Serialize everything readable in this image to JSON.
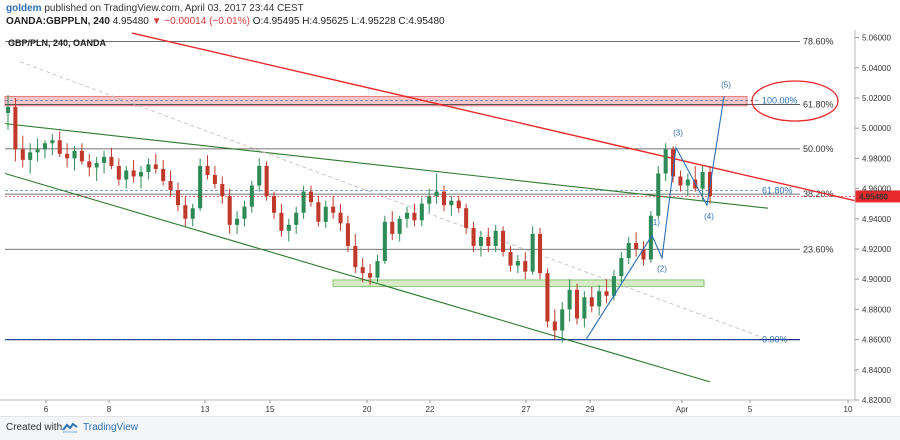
{
  "header": {
    "user": "goldem",
    "published": "published on TradingView.com, April 03, 2017 23:44 CEST",
    "symbol": "OANDA:GBPPLN, 240",
    "last": "4.95480",
    "change": "▼ −0.00014 (−0.01%)",
    "ohlc_o_label": "O:",
    "ohlc_o": "4.95495",
    "ohlc_h_label": "H:",
    "ohlc_h": "4.95625",
    "ohlc_l_label": "L:",
    "ohlc_l": "4.95228",
    "ohlc_c_label": "C:",
    "ohlc_c": "4.95480"
  },
  "chart_label": "GBP/PLN, 240, OANDA",
  "footer": {
    "created_with": "Created with",
    "brand": "TradingView"
  },
  "colors": {
    "up": "#2e8b57",
    "down": "#c0392b",
    "trend_red": "#e8292b",
    "channel": "#2f7a2f",
    "wave": "#2c6fb3",
    "fib_grid": "#444444",
    "price_tag": "#e8292b"
  },
  "chart_data": {
    "type": "candlestick",
    "title": "GBP/PLN, 240, OANDA",
    "ylim": [
      4.82,
      5.065
    ],
    "yticks": [
      "5.06000",
      "5.04000",
      "5.02000",
      "5.00000",
      "4.98000",
      "4.96000",
      "4.94000",
      "4.92000",
      "4.90000",
      "4.88000",
      "4.86000",
      "4.84000",
      "4.82000"
    ],
    "xticks": [
      "6",
      "8",
      "13",
      "15",
      "20",
      "22",
      "27",
      "29",
      "Apr",
      "5",
      "10"
    ],
    "last_price": "4.95480",
    "fib_levels": [
      {
        "label": "78.60%",
        "price": 5.0574
      },
      {
        "label": "61.80%",
        "price": 5.0157
      },
      {
        "label": "50.00%",
        "price": 4.9863
      },
      {
        "label": "38.20%",
        "price": 4.9563
      },
      {
        "label": "23.60%",
        "price": 4.9198
      },
      {
        "label": "0.00%",
        "price": 4.86
      }
    ],
    "fib_extension": [
      {
        "label": "100.00%",
        "price": 5.0182
      },
      {
        "label": "61.80%",
        "price": 4.9587
      },
      {
        "label": "0.00%",
        "price": 4.86
      }
    ],
    "resistance_zone": [
      5.0148,
      5.021
    ],
    "support_zone": [
      4.8951,
      4.8995
    ],
    "wave_labels": [
      "(1)",
      "(2)",
      "(3)",
      "(4)",
      "(5)"
    ],
    "candles": [
      [
        5.01,
        5.022,
        4.999,
        5.014
      ],
      [
        5.014,
        5.02,
        4.978,
        4.986
      ],
      [
        4.986,
        4.995,
        4.974,
        4.979
      ],
      [
        4.979,
        4.99,
        4.97,
        4.984
      ],
      [
        4.984,
        4.993,
        4.978,
        4.986
      ],
      [
        4.986,
        4.992,
        4.98,
        4.99
      ],
      [
        4.99,
        4.996,
        4.982,
        4.992
      ],
      [
        4.992,
        4.998,
        4.981,
        4.983
      ],
      [
        4.983,
        4.99,
        4.974,
        4.98
      ],
      [
        4.98,
        4.988,
        4.972,
        4.985
      ],
      [
        4.985,
        4.99,
        4.976,
        4.978
      ],
      [
        4.978,
        4.983,
        4.968,
        4.974
      ],
      [
        4.974,
        4.981,
        4.965,
        4.977
      ],
      [
        4.977,
        4.985,
        4.97,
        4.981
      ],
      [
        4.981,
        4.987,
        4.973,
        4.975
      ],
      [
        4.975,
        4.98,
        4.962,
        4.966
      ],
      [
        4.966,
        4.975,
        4.96,
        4.972
      ],
      [
        4.972,
        4.979,
        4.964,
        4.968
      ],
      [
        4.968,
        4.975,
        4.96,
        4.971
      ],
      [
        4.971,
        4.98,
        4.966,
        4.976
      ],
      [
        4.976,
        4.983,
        4.97,
        4.973
      ],
      [
        4.973,
        4.979,
        4.962,
        4.965
      ],
      [
        4.965,
        4.972,
        4.955,
        4.959
      ],
      [
        4.959,
        4.964,
        4.945,
        4.949
      ],
      [
        4.949,
        4.955,
        4.935,
        4.94
      ],
      [
        4.94,
        4.95,
        4.935,
        4.947
      ],
      [
        4.947,
        4.98,
        4.945,
        4.975
      ],
      [
        4.975,
        4.982,
        4.966,
        4.969
      ],
      [
        4.969,
        4.975,
        4.96,
        4.963
      ],
      [
        4.963,
        4.968,
        4.95,
        4.955
      ],
      [
        4.955,
        4.96,
        4.93,
        4.936
      ],
      [
        4.936,
        4.945,
        4.93,
        4.94
      ],
      [
        4.94,
        4.952,
        4.935,
        4.948
      ],
      [
        4.948,
        4.965,
        4.944,
        4.962
      ],
      [
        4.962,
        4.98,
        4.958,
        4.975
      ],
      [
        4.975,
        4.978,
        4.952,
        4.955
      ],
      [
        4.955,
        4.958,
        4.94,
        4.944
      ],
      [
        4.944,
        4.95,
        4.928,
        4.932
      ],
      [
        4.932,
        4.94,
        4.925,
        4.936
      ],
      [
        4.936,
        4.948,
        4.93,
        4.944
      ],
      [
        4.944,
        4.962,
        4.94,
        4.958
      ],
      [
        4.958,
        4.962,
        4.948,
        4.951
      ],
      [
        4.951,
        4.955,
        4.935,
        4.938
      ],
      [
        4.938,
        4.952,
        4.934,
        4.948
      ],
      [
        4.948,
        4.955,
        4.94,
        4.944
      ],
      [
        4.944,
        4.95,
        4.932,
        4.937
      ],
      [
        4.937,
        4.942,
        4.918,
        4.922
      ],
      [
        4.922,
        4.93,
        4.904,
        4.908
      ],
      [
        4.908,
        4.914,
        4.898,
        4.904
      ],
      [
        4.904,
        4.91,
        4.896,
        4.901
      ],
      [
        4.901,
        4.916,
        4.898,
        4.912
      ],
      [
        4.912,
        4.942,
        4.91,
        4.938
      ],
      [
        4.938,
        4.945,
        4.926,
        4.93
      ],
      [
        4.93,
        4.942,
        4.925,
        4.94
      ],
      [
        4.94,
        4.948,
        4.934,
        4.944
      ],
      [
        4.944,
        4.95,
        4.935,
        4.939
      ],
      [
        4.939,
        4.954,
        4.935,
        4.95
      ],
      [
        4.95,
        4.96,
        4.944,
        4.955
      ],
      [
        4.955,
        4.97,
        4.95,
        4.958
      ],
      [
        4.958,
        4.962,
        4.945,
        4.949
      ],
      [
        4.949,
        4.955,
        4.942,
        4.952
      ],
      [
        4.952,
        4.955,
        4.944,
        4.947
      ],
      [
        4.947,
        4.95,
        4.93,
        4.934
      ],
      [
        4.934,
        4.938,
        4.918,
        4.922
      ],
      [
        4.922,
        4.932,
        4.915,
        4.928
      ],
      [
        4.928,
        4.934,
        4.918,
        4.922
      ],
      [
        4.922,
        4.936,
        4.918,
        4.932
      ],
      [
        4.932,
        4.935,
        4.915,
        4.918
      ],
      [
        4.918,
        4.922,
        4.905,
        4.909
      ],
      [
        4.909,
        4.916,
        4.904,
        4.912
      ],
      [
        4.912,
        4.918,
        4.9,
        4.905
      ],
      [
        4.905,
        4.935,
        4.903,
        4.93
      ],
      [
        4.93,
        4.934,
        4.9,
        4.904
      ],
      [
        4.904,
        4.907,
        4.868,
        4.872
      ],
      [
        4.872,
        4.88,
        4.86,
        4.866
      ],
      [
        4.866,
        4.885,
        4.858,
        4.88
      ],
      [
        4.88,
        4.9,
        4.872,
        4.893
      ],
      [
        4.893,
        4.897,
        4.87,
        4.874
      ],
      [
        4.874,
        4.892,
        4.868,
        4.888
      ],
      [
        4.888,
        4.895,
        4.878,
        4.882
      ],
      [
        4.882,
        4.896,
        4.876,
        4.892
      ],
      [
        4.892,
        4.9,
        4.884,
        4.889
      ],
      [
        4.889,
        4.906,
        4.886,
        4.902
      ],
      [
        4.902,
        4.918,
        4.898,
        4.914
      ],
      [
        4.914,
        4.928,
        4.91,
        4.924
      ],
      [
        4.924,
        4.931,
        4.915,
        4.92
      ],
      [
        4.92,
        4.925,
        4.909,
        4.913
      ],
      [
        4.913,
        4.945,
        4.911,
        4.942
      ],
      [
        4.942,
        4.975,
        4.94,
        4.97
      ],
      [
        4.97,
        4.99,
        4.965,
        4.986
      ],
      [
        4.986,
        4.988,
        4.964,
        4.968
      ],
      [
        4.968,
        4.972,
        4.958,
        4.962
      ],
      [
        4.962,
        4.97,
        4.955,
        4.966
      ],
      [
        4.966,
        4.975,
        4.958,
        4.96
      ],
      [
        4.96,
        4.975,
        4.952,
        4.971
      ],
      [
        4.971,
        4.975,
        4.95,
        4.955
      ]
    ]
  }
}
